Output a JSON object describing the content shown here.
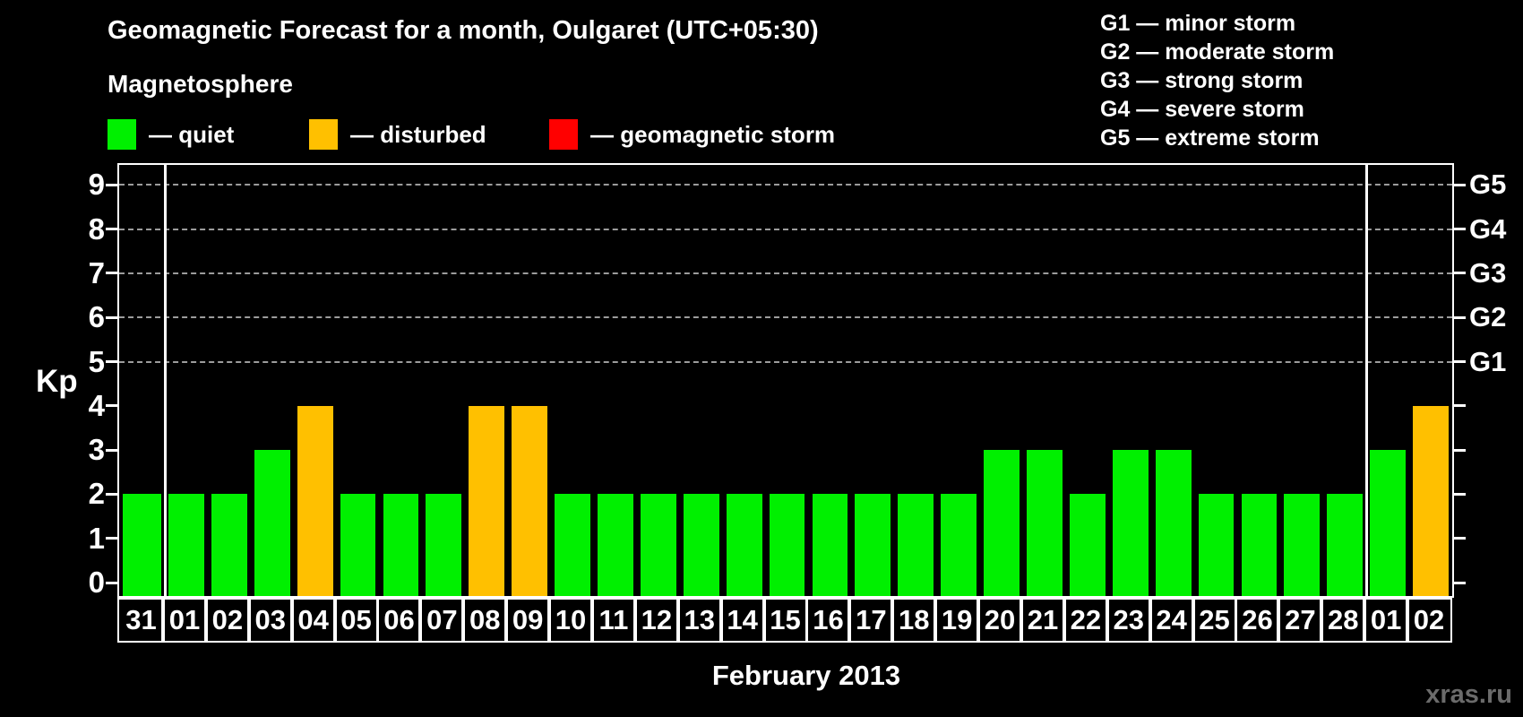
{
  "title": "Geomagnetic Forecast for a month, Oulgaret (UTC+05:30)",
  "subtitle": "Magnetosphere",
  "legend": {
    "items": [
      {
        "key": "quiet",
        "label": "— quiet",
        "color": "#00f000"
      },
      {
        "key": "disturbed",
        "label": "— disturbed",
        "color": "#ffc000"
      },
      {
        "key": "storm",
        "label": "— geomagnetic storm",
        "color": "#ff0000"
      }
    ]
  },
  "storm_scale_legend": [
    "G1 — minor storm",
    "G2 — moderate storm",
    "G3 — strong storm",
    "G4 — severe storm",
    "G5 — extreme storm"
  ],
  "watermark": "xras.ru",
  "chart_data": {
    "type": "bar",
    "title": "Geomagnetic Forecast for a month, Oulgaret (UTC+05:30)",
    "xlabel": "February 2013",
    "ylabel": "Kp",
    "ylim": [
      0,
      9
    ],
    "y_ticks": [
      0,
      1,
      2,
      3,
      4,
      5,
      6,
      7,
      8,
      9
    ],
    "grid_levels": [
      5,
      6,
      7,
      8,
      9
    ],
    "right_axis_labels": [
      {
        "kp": 5,
        "label": "G1"
      },
      {
        "kp": 6,
        "label": "G2"
      },
      {
        "kp": 7,
        "label": "G3"
      },
      {
        "kp": 8,
        "label": "G4"
      },
      {
        "kp": 9,
        "label": "G5"
      }
    ],
    "categories": [
      "31",
      "01",
      "02",
      "03",
      "04",
      "05",
      "06",
      "07",
      "08",
      "09",
      "10",
      "11",
      "12",
      "13",
      "14",
      "15",
      "16",
      "17",
      "18",
      "19",
      "20",
      "21",
      "22",
      "23",
      "24",
      "25",
      "26",
      "27",
      "28",
      "01",
      "02"
    ],
    "values": [
      2,
      2,
      2,
      3,
      4,
      2,
      2,
      2,
      4,
      4,
      2,
      2,
      2,
      2,
      2,
      2,
      2,
      2,
      2,
      2,
      3,
      3,
      2,
      3,
      3,
      2,
      2,
      2,
      2,
      3,
      4
    ],
    "color_rules": {
      "storm_min_kp": 5,
      "disturbed_min_kp": 4
    },
    "month_separator_boundaries": [
      1,
      29
    ],
    "legend_position": "top",
    "grid": "dashed horizontal at storm levels only"
  }
}
